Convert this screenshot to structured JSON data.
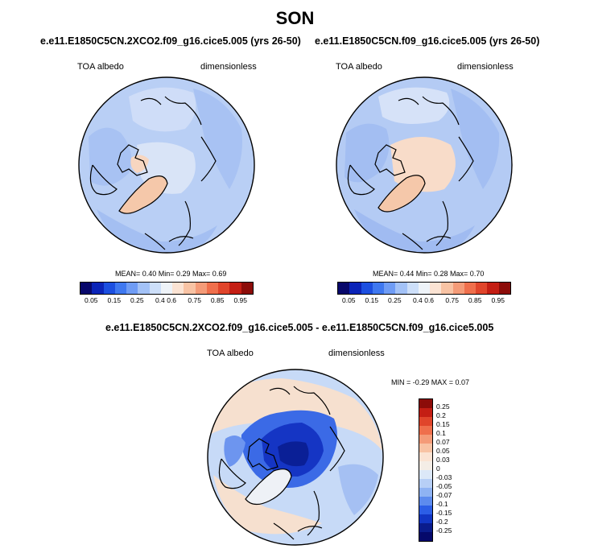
{
  "figure": {
    "title": "SON",
    "panels": [
      {
        "case": "e.e11.E1850C5CN.2XCO2.f09_g16.cice5.005 (yrs 26-50)",
        "field": "TOA albedo",
        "units": "dimensionless",
        "stats": "MEAN=  0.40  Min=  0.29  Max=  0.69",
        "mean": 0.4,
        "min": 0.29,
        "max": 0.69
      },
      {
        "case": "e.e11.E1850C5CN.f09_g16.cice5.005 (yrs 26-50)",
        "field": "TOA albedo",
        "units": "dimensionless",
        "stats": "MEAN=  0.44  Min=  0.28  Max=  0.70",
        "mean": 0.44,
        "min": 0.28,
        "max": 0.7
      }
    ],
    "difference": {
      "case": "e.e11.E1850C5CN.2XCO2.f09_g16.cice5.005 - e.e11.E1850C5CN.f09_g16.cice5.005",
      "field": "TOA albedo",
      "units": "dimensionless",
      "stats": "MIN =  -0.29 MAX =  0.07",
      "min": -0.29,
      "max": 0.07
    },
    "abs_colorbar": {
      "labels": [
        "0.05",
        "0.15",
        "0.25",
        "0.4",
        "0.6",
        "0.75",
        "0.85",
        "0.95"
      ],
      "colors": [
        "#08086b",
        "#0b24b8",
        "#1c4fe0",
        "#3f78f0",
        "#6f9cf5",
        "#a3c2f7",
        "#cddff9",
        "#eef3f8",
        "#fbe3d3",
        "#f8c3a4",
        "#f49b78",
        "#ef6f4c",
        "#e0452b",
        "#c41e14",
        "#8c0c09"
      ]
    },
    "diff_colorbar": {
      "labels": [
        "0.25",
        "0.2",
        "0.15",
        "0.1",
        "0.07",
        "0.05",
        "0.03",
        "0",
        "-0.03",
        "-0.05",
        "-0.07",
        "-0.1",
        "-0.15",
        "-0.2",
        "-0.25"
      ],
      "colors": [
        "#8c0c09",
        "#c41e14",
        "#e0452b",
        "#ef6f4c",
        "#f49b78",
        "#f8c3a4",
        "#fbe3d3",
        "#f4ede6",
        "#dce8f8",
        "#b7cff6",
        "#8fb3f3",
        "#5d8bee",
        "#2c5ee6",
        "#1236c4",
        "#0a1c8c",
        "#05096b"
      ]
    }
  }
}
